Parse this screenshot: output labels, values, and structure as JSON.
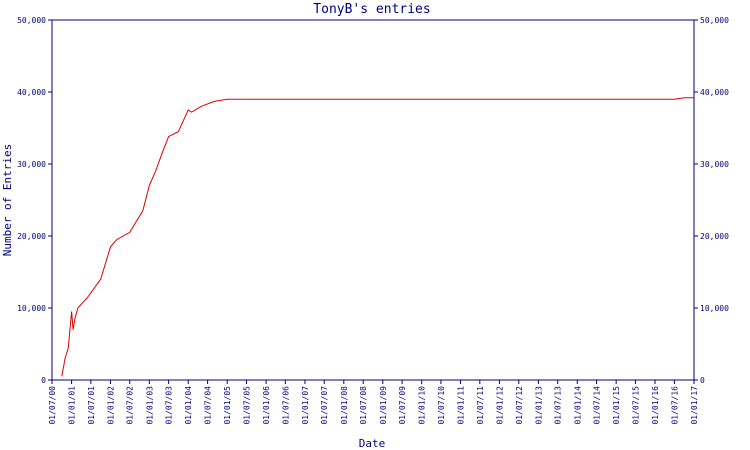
{
  "chart_data": {
    "type": "line",
    "title": "TonyB's entries",
    "xlabel": "Date",
    "ylabel": "Number of Entries",
    "ylim": [
      0,
      50000
    ],
    "yticks": [
      {
        "value": 0,
        "label": "0"
      },
      {
        "value": 10000,
        "label": "10,000"
      },
      {
        "value": 20000,
        "label": "20,000"
      },
      {
        "value": 30000,
        "label": "30,000"
      },
      {
        "value": 40000,
        "label": "40,000"
      },
      {
        "value": 50000,
        "label": "50,000"
      }
    ],
    "xticks": [
      "01/07/00",
      "01/01/01",
      "01/07/01",
      "01/01/02",
      "01/07/02",
      "01/01/03",
      "01/07/03",
      "01/01/04",
      "01/07/04",
      "01/01/05",
      "01/07/05",
      "01/01/06",
      "01/07/06",
      "01/01/07",
      "01/07/07",
      "01/01/08",
      "01/07/08",
      "01/01/09",
      "01/07/09",
      "01/01/10",
      "01/07/10",
      "01/01/11",
      "01/07/11",
      "01/01/12",
      "01/07/12",
      "01/01/13",
      "01/07/13",
      "01/01/14",
      "01/07/14",
      "01/01/15",
      "01/07/15",
      "01/01/16",
      "01/07/16",
      "01/01/17"
    ],
    "series": [
      {
        "color": "#dd0000",
        "x": [
          "2000-10-01",
          "2000-11-01",
          "2000-12-01",
          "2001-01-01",
          "2001-01-15",
          "2001-02-01",
          "2001-03-01",
          "2001-06-01",
          "2001-10-01",
          "2002-01-01",
          "2002-03-01",
          "2002-07-01",
          "2002-11-01",
          "2003-01-01",
          "2003-03-01",
          "2003-05-01",
          "2003-07-01",
          "2003-10-01",
          "2004-01-01",
          "2004-02-01",
          "2004-05-01",
          "2004-09-01",
          "2005-01-01",
          "2006-01-01",
          "2008-01-01",
          "2010-01-01",
          "2012-01-01",
          "2014-01-01",
          "2016-07-01",
          "2016-10-01",
          "2017-01-01"
        ],
        "y": [
          500,
          3000,
          4500,
          9500,
          7000,
          8500,
          10000,
          11500,
          14000,
          18500,
          19500,
          20500,
          23500,
          27000,
          29000,
          31500,
          33800,
          34500,
          37500,
          37200,
          38000,
          38700,
          39000,
          39000,
          39000,
          39000,
          39000,
          39000,
          39000,
          39200,
          39200
        ]
      }
    ],
    "colors": {
      "axis": "#000080",
      "title": "#000080",
      "line": "#dd0000"
    },
    "grid": false
  }
}
